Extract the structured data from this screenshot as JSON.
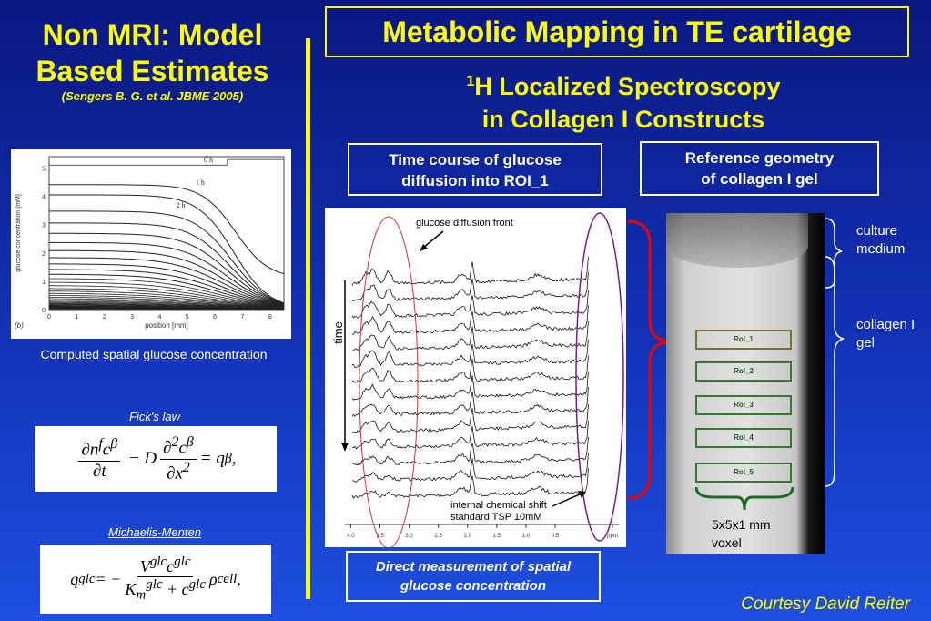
{
  "left": {
    "title_line1": "Non MRI:  Model",
    "title_line2": "Based Estimates",
    "citation": "(Sengers B. G. et al. JBME 2005)",
    "figure_caption": "Computed spatial glucose concentration",
    "ficks_label": "Fick's law",
    "mm_label": "Michaelis-Menten"
  },
  "left_chart": {
    "ylabel": "glucose concentration [mM]",
    "xlabel": "position [mm]",
    "panel": "(b)",
    "xticks": [
      "0",
      "1",
      "2",
      "3",
      "4",
      "5",
      "6",
      "7",
      "8"
    ],
    "yticks": [
      "0",
      "1",
      "2",
      "3",
      "4",
      "5"
    ],
    "curve_labels": [
      "0 h",
      "1 h",
      "2 h"
    ]
  },
  "right": {
    "title": "Metabolic Mapping in TE cartilage",
    "subtitle_sup": "1",
    "subtitle_line1": "H Localized Spectroscopy",
    "subtitle_line2": "in Collagen I Constructs",
    "box_time_course": [
      "Time course of glucose",
      "diffusion into ROI_1"
    ],
    "box_reference": [
      "Reference geometry",
      "of collagen I gel"
    ],
    "box_direct": [
      "Direct measurement of spatial",
      "glucose concentration"
    ],
    "courtesy": "Courtesy David Reiter"
  },
  "spectra": {
    "annotation_front": "glucose diffusion front",
    "time_label": "time",
    "annotation_tsp": [
      "internal chemical shift",
      "standard TSP 10mM"
    ],
    "xticks": [
      "4.0",
      "3.5",
      "3.0",
      "2.5",
      "2.0",
      "1.5",
      "1.0",
      "0.5",
      "ppm"
    ]
  },
  "mri": {
    "rois": [
      "RoI_1",
      "RoI_2",
      "RoI_3",
      "RoI_4",
      "RoI_5"
    ],
    "voxel": [
      "5x5x1 mm",
      "voxel"
    ],
    "label_culture": [
      "culture",
      "medium"
    ],
    "label_gel": [
      "collagen I",
      "gel"
    ]
  }
}
